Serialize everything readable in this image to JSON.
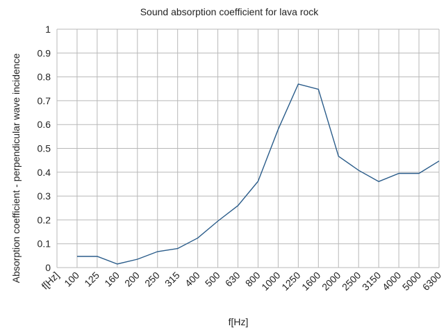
{
  "chart_data": {
    "type": "line",
    "title": "Sound absorption coefficient for lava rock",
    "xlabel": "f[Hz]",
    "ylabel": "Absorption coefficient - perpendicular wave incidence",
    "categories": [
      "f[Hz]",
      "100",
      "125",
      "160",
      "200",
      "250",
      "315",
      "400",
      "500",
      "630",
      "800",
      "1000",
      "1250",
      "1600",
      "2000",
      "2500",
      "3150",
      "4000",
      "5000",
      "6300"
    ],
    "series": [
      {
        "values": [
          null,
          0.047,
          0.047,
          0.015,
          0.035,
          0.067,
          0.08,
          0.124,
          0.195,
          0.26,
          0.362,
          0.58,
          0.77,
          0.748,
          0.467,
          0.408,
          0.361,
          0.395,
          0.395,
          0.447
        ],
        "color": "#2a5c8a"
      }
    ],
    "ylim": [
      0,
      1
    ],
    "yticks": [
      "0",
      "0.1",
      "0.2",
      "0.3",
      "0.4",
      "0.5",
      "0.6",
      "0.7",
      "0.8",
      "0.9",
      "1"
    ],
    "grid": true,
    "legend": "none"
  }
}
